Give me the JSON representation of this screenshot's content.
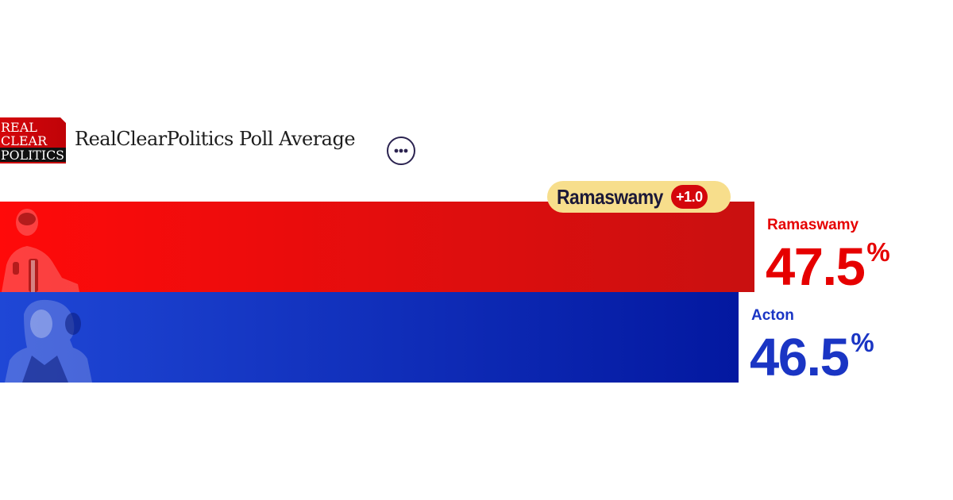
{
  "header": {
    "logo_lines": [
      "REAL",
      "CLEAR",
      "POLITICS"
    ],
    "title": "RealClearPolitics Poll Average",
    "more_icon": "ellipsis-icon"
  },
  "colors": {
    "republican": "#e60000",
    "democrat": "#1a35c4",
    "highlight": "#f7de8c",
    "logo_red": "#d4060b"
  },
  "leader": {
    "name": "Ramaswamy",
    "margin": "+1.0"
  },
  "chart_data": {
    "type": "bar",
    "orientation": "horizontal",
    "unit": "%",
    "xlim": [
      0,
      60
    ],
    "categories": [
      "Ramaswamy",
      "Acton"
    ],
    "values": [
      47.5,
      46.5
    ],
    "value_labels": [
      "47.5",
      "46.5"
    ],
    "series_colors": [
      "#e60000",
      "#1a35c4"
    ]
  }
}
